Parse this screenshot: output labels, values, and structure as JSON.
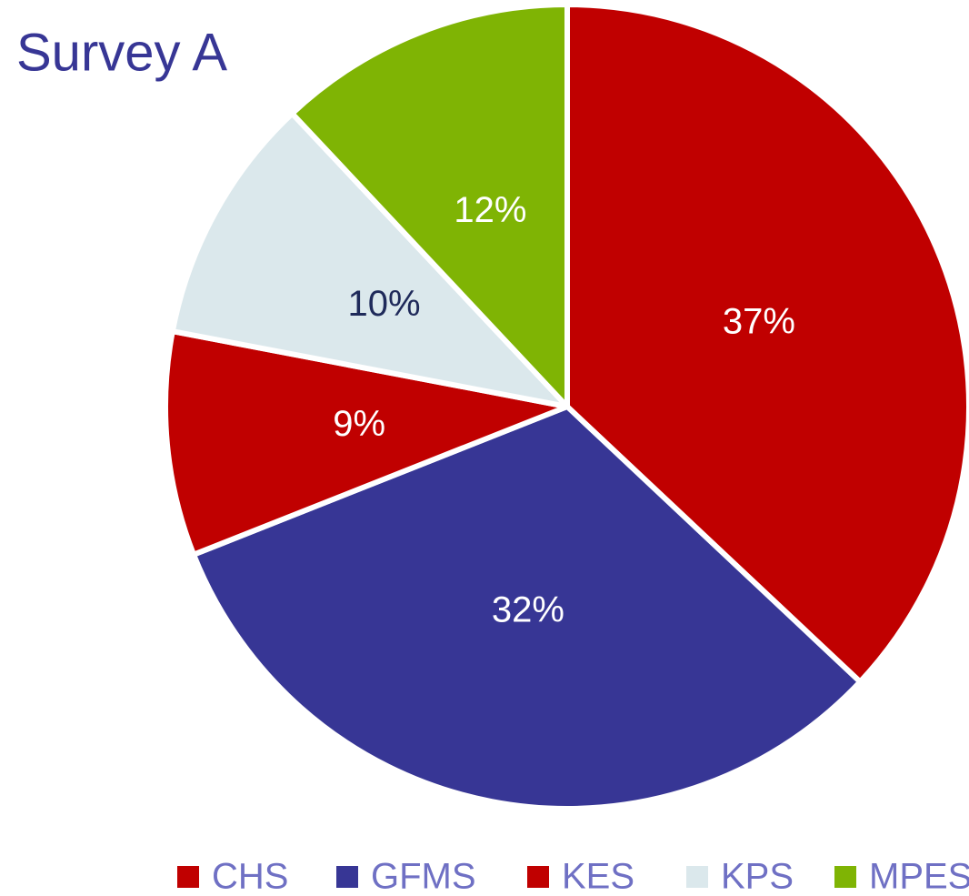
{
  "chart_data": {
    "type": "pie",
    "title": "Survey A",
    "categories": [
      "CHS",
      "GFMS",
      "KES",
      "KPS",
      "MPES"
    ],
    "values": [
      37,
      32,
      9,
      10,
      12
    ],
    "value_labels": [
      "37%",
      "32%",
      "9%",
      "10%",
      "12%"
    ],
    "colors": [
      "#c00000",
      "#373695",
      "#c00000",
      "#dbe8ec",
      "#7fb404"
    ],
    "label_colors": [
      "#ffffff",
      "#ffffff",
      "#ffffff",
      "#1f2a5a",
      "#ffffff"
    ],
    "legend": "bottom"
  }
}
